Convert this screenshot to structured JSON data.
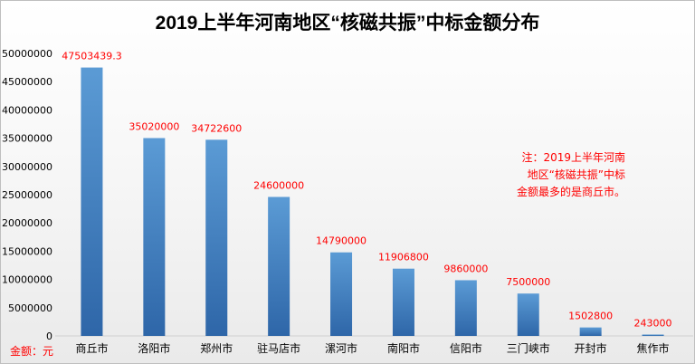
{
  "chart_data": {
    "type": "bar",
    "title": "2019上半年河南地区“核磁共振”中标金额分布",
    "ylabel": "金额：元",
    "xlabel": "",
    "ylim": [
      0,
      50000000
    ],
    "yticks": [
      "0",
      "5000000",
      "10000000",
      "15000000",
      "20000000",
      "25000000",
      "30000000",
      "35000000",
      "40000000",
      "45000000",
      "50000000"
    ],
    "grid": false,
    "categories": [
      "商丘市",
      "洛阳市",
      "郑州市",
      "驻马店市",
      "漯河市",
      "南阳市",
      "信阳市",
      "三门峡市",
      "开封市",
      "焦作市"
    ],
    "values": [
      47503439.3,
      35020000,
      34722600,
      24600000,
      14790000,
      11906800,
      9860000,
      7500000,
      1502800,
      243000
    ],
    "data_labels": [
      "47503439.3",
      "35020000",
      "34722600",
      "24600000",
      "14790000",
      "11906800",
      "9860000",
      "7500000",
      "1502800",
      "243000"
    ],
    "note_lines": [
      "注：2019上半年河南",
      "地区“核磁共振”中标",
      "金额最多的是商丘市。"
    ],
    "colors": {
      "bar_top": "#5b9bd5",
      "bar_bottom": "#2e66a8",
      "label": "#ff0000"
    }
  }
}
